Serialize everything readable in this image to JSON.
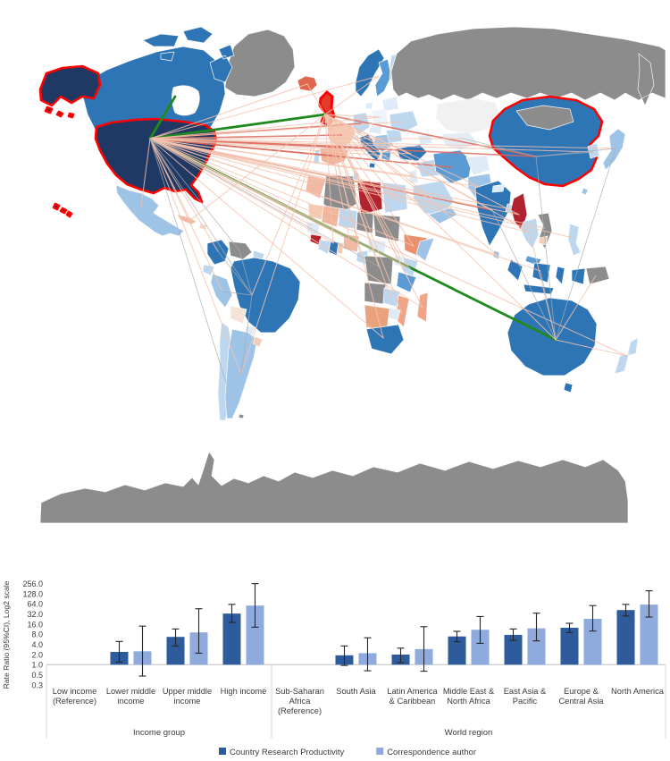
{
  "figure": {
    "background": "#FFFFFF"
  },
  "map": {
    "ocean_color": "#FFFFFF",
    "highlight_color": "#FF0000",
    "highlighted": [
      "usa",
      "alaska",
      "hawaii",
      "aleutian",
      "uk",
      " china",
      "china"
    ],
    "regions": {
      "greenland": "#8C8C8C",
      "iceland": "#E0674F",
      "canada": "#2E75B6",
      "canada_islands": "#2E75B6",
      "alaska": "#1F3864",
      "usa": "#1F3864",
      "hawaii": "#1F3864",
      "aleutian": "#1F3864",
      "mexico": "#9DC3E6",
      "cuba": "#F1B9A3",
      "hispaniola": "#F6D8C8",
      "colombia": "#2E75B6",
      "venezuela": "#8C8C8C",
      "guyanas": "#BDD7EE",
      "ecuador": "#BDD7EE",
      "peru": "#9DC3E6",
      "brazil": "#2E75B6",
      "bolivia": "#F6E3D7",
      "paraguay": "#DEEBF7",
      "chile": "#BDD7EE",
      "argentina": "#9DC3E6",
      "uruguay": "#F2CDB9",
      "falkland": "#8C8C8C",
      "norway": "#2E75B6",
      "sweden": "#5B9BD5",
      "finland": "#BDD7EE",
      "denmark": "#DEEBF7",
      "uk": "#E23B2E",
      "ireland": "#F8EFEA",
      "france": "#F5CBB4",
      "spain": "#EFB49A",
      "portugal": "#BDD7EE",
      "germany": "#BDD7EE",
      "benelux": "#F6F6F4",
      "italy": "#2E75B6",
      "sicily": "#2E75B6",
      "switzerland": "#DEEBF7",
      "poland": "#EDF3FA",
      "czech_austria": "#DEEBF7",
      "balkans": "#9DC3E6",
      "greece": "#5B9BD5",
      "romania": "#BDD7EE",
      "ukraine": "#BDD7EE",
      "belarus_baltics": "#DEEBF7",
      "russia": "#8C8C8C",
      "kazakhstan": "#F1F1F1",
      "central_asia_s": "#E3ECF4",
      "caucasus": "#DEEBF7",
      "turkey": "#2E75B6",
      "syria_iraq": "#BDD7EE",
      "israel_jordan": "#DEEBF7",
      "saudi": "#BDD7EE",
      "yemen_oman": "#9DC3E6",
      "iran": "#5B9BD5",
      "afghanistan": "#DEEBF7",
      "pakistan": "#9DC3E6",
      "india": "#2E75B6",
      "nepal": "#DEEBF7",
      "bangladesh": "#BDD7EE",
      "srilanka": "#9DC3E6",
      "myanmar": "#B1242F",
      "china": "#2E75B6",
      "mongolia": "#8C8C8C",
      "korea": "#BDD7EE",
      "japan": "#9DC3E6",
      "taiwan": "#9DC3E6",
      "thailand": "#BDD7EE",
      "vietnam_laos": "#8C8C8C",
      "cambodia": "#F2CDB9",
      "malaysia": "#5B9BD5",
      "sumatra": "#2E75B6",
      "borneo": "#2E75B6",
      "sulawesi": "#2E75B6",
      "java": "#2E75B6",
      "papua_indo": "#2E75B6",
      "png": "#8C8C8C",
      "philippines": "#BDD7EE",
      "australia": "#2E75B6",
      "tasmania": "#2E75B6",
      "nz_north": "#BDD7EE",
      "nz_south": "#BDD7EE",
      "morocco": "#F1B9A3",
      "algeria": "#8C8C8C",
      "tunisia": "#BDD7EE",
      "libya": "#B1242F",
      "egypt_af": "#BDD7EE",
      "mauritania": "#F5CBB4",
      "mali": "#EFB49A",
      "niger": "#BDD7EE",
      "chad": "#8C8C8C",
      "sudan": "#8C8C8C",
      "somalia": "#9DC3E6",
      "senegal": "#DEEBF7",
      "guinea": "#B1242F",
      "ivory": "#BDD7EE",
      "ghana": "#2E75B6",
      "togo_benin": "#F5CBB4",
      "nigeria": "#F1B9A3",
      "cameroon": "#BDD7EE",
      "centralafrica": "#DEEBF7",
      "drc": "#8C8C8C",
      "uganda": "#DEEBF7",
      "kenya": "#BDD7EE",
      "ethiopia": "#E8916C",
      "tanzania": "#5B9BD5",
      "angola": "#8C8C8C",
      "zambia": "#BDD7EE",
      "mozambique": "#EFA488",
      "zimbabwe": "#DEEBF7",
      "namibia_botswana": "#E8A27C",
      "south_africa": "#2E75B6",
      "madagascar": "#EFA488",
      "antarctica": "#8C8C8C",
      "hudson_bay": "#FFFFFF"
    },
    "line_styles": {
      "strong": {
        "color": "#1E8A1E",
        "width": 2.8,
        "opacity": 1
      },
      "medium": {
        "color": "#DC6A5C",
        "width": 1.6,
        "opacity": 0.85
      },
      "salmon": {
        "color": "#F5C3AF",
        "width": 1,
        "opacity": 0.85
      },
      "gray": {
        "color": "#A9ADB2",
        "width": 0.9,
        "opacity": 0.75
      }
    },
    "hubs": {
      "usa": [
        168,
        155
      ],
      "uk": [
        364,
        128
      ],
      "canada_pt": [
        196,
        108
      ],
      "china": [
        600,
        175
      ],
      "australia": [
        622,
        380
      ],
      "brazil": [
        282,
        330
      ],
      "japan": [
        689,
        166
      ],
      "germany": [
        404,
        138
      ],
      "france": [
        382,
        151
      ],
      "spain": [
        372,
        174
      ],
      "italy": [
        413,
        165
      ],
      "scand": [
        424,
        85
      ],
      "iceland": [
        344,
        94
      ],
      "poland": [
        425,
        131
      ],
      "ukraine": [
        451,
        136
      ],
      "turkey": [
        460,
        172
      ],
      "greece": [
        432,
        174
      ],
      "israel": [
        463,
        197
      ],
      "egypt": [
        441,
        219
      ],
      "saudi": [
        484,
        222
      ],
      "iran": [
        506,
        187
      ],
      "india": [
        551,
        235
      ],
      "pakistan": [
        537,
        209
      ],
      "bangladesh": [
        571,
        234
      ],
      "srilanka": [
        556,
        285
      ],
      "myanmar": [
        581,
        240
      ],
      "thailand": [
        593,
        260
      ],
      "vietnam": [
        610,
        255
      ],
      "indonesia": [
        605,
        303
      ],
      "philippines": [
        642,
        266
      ],
      "korea": [
        664,
        170
      ],
      "mexico": [
        158,
        231
      ],
      "caribbean": [
        213,
        246
      ],
      "colombia": [
        244,
        281
      ],
      "venezuela": [
        268,
        280
      ],
      "peru": [
        249,
        326
      ],
      "chile": [
        253,
        428
      ],
      "argentina": [
        270,
        418
      ],
      "nigeria": [
        391,
        268
      ],
      "ghana": [
        373,
        272
      ],
      "south_africa": [
        429,
        378
      ],
      "east_africa": [
        459,
        300
      ],
      "ethiopia": [
        463,
        275
      ],
      "kenya": [
        457,
        297
      ],
      "drc": [
        424,
        298
      ],
      "zambia": [
        437,
        332
      ],
      "mozambique": [
        450,
        350
      ],
      "cameroon": [
        403,
        281
      ],
      "uganda": [
        448,
        288
      ],
      "tanzania": [
        457,
        312
      ],
      "madagascar": [
        473,
        344
      ],
      "morocco": [
        352,
        206
      ],
      "senegal": [
        349,
        252
      ],
      "new_zealand": [
        702,
        398
      ],
      "png_pt": [
        667,
        308
      ],
      "central_asia": [
        519,
        155
      ]
    },
    "connections": [
      [
        "usa",
        "uk",
        "strong"
      ],
      [
        "usa",
        "australia",
        "strong"
      ],
      [
        "usa",
        "canada_pt",
        "strong"
      ],
      [
        "usa",
        "china",
        "medium"
      ],
      [
        "usa",
        "germany",
        "medium"
      ],
      [
        "usa",
        "france",
        "medium"
      ],
      [
        "usa",
        "italy",
        "medium"
      ],
      [
        "usa",
        "spain",
        "medium"
      ],
      [
        "usa",
        "india",
        "medium"
      ],
      [
        "usa",
        "iran",
        "medium"
      ],
      [
        "uk",
        "china",
        "medium"
      ],
      [
        "usa",
        "scand",
        "salmon"
      ],
      [
        "usa",
        "iceland",
        "salmon"
      ],
      [
        "usa",
        "poland",
        "salmon"
      ],
      [
        "usa",
        "ukraine",
        "salmon"
      ],
      [
        "usa",
        "turkey",
        "salmon"
      ],
      [
        "usa",
        "greece",
        "salmon"
      ],
      [
        "usa",
        "israel",
        "salmon"
      ],
      [
        "usa",
        "egypt",
        "salmon"
      ],
      [
        "usa",
        "saudi",
        "salmon"
      ],
      [
        "usa",
        "pakistan",
        "salmon"
      ],
      [
        "usa",
        "thailand",
        "salmon"
      ],
      [
        "usa",
        "vietnam",
        "salmon"
      ],
      [
        "usa",
        "indonesia",
        "salmon"
      ],
      [
        "usa",
        "philippines",
        "salmon"
      ],
      [
        "usa",
        "korea",
        "salmon"
      ],
      [
        "usa",
        "japan",
        "salmon"
      ],
      [
        "usa",
        "caribbean",
        "salmon"
      ],
      [
        "usa",
        "colombia",
        "salmon"
      ],
      [
        "usa",
        "peru",
        "salmon"
      ],
      [
        "usa",
        "argentina",
        "salmon"
      ],
      [
        "usa",
        "nigeria",
        "salmon"
      ],
      [
        "usa",
        "ghana",
        "salmon"
      ],
      [
        "usa",
        "south_africa",
        "salmon"
      ],
      [
        "usa",
        "east_africa",
        "salmon"
      ],
      [
        "usa",
        "ethiopia",
        "salmon"
      ],
      [
        "usa",
        "kenya",
        "salmon"
      ],
      [
        "usa",
        "madagascar",
        "salmon"
      ],
      [
        "usa",
        "morocco",
        "salmon"
      ],
      [
        "usa",
        "senegal",
        "salmon"
      ],
      [
        "usa",
        "new_zealand",
        "salmon"
      ],
      [
        "usa",
        "myanmar",
        "salmon"
      ],
      [
        "usa",
        "bangladesh",
        "salmon"
      ],
      [
        "usa",
        "srilanka",
        "salmon"
      ],
      [
        "usa",
        "central_asia",
        "salmon"
      ],
      [
        "usa",
        "mexico",
        "salmon"
      ],
      [
        "usa",
        "brazil",
        "gray"
      ],
      [
        "usa",
        "venezuela",
        "gray"
      ],
      [
        "usa",
        "chile",
        "gray"
      ],
      [
        "usa",
        "drc",
        "gray"
      ],
      [
        "uk",
        "iceland",
        "salmon"
      ],
      [
        "uk",
        "scand",
        "salmon"
      ],
      [
        "uk",
        "poland",
        "salmon"
      ],
      [
        "uk",
        "turkey",
        "salmon"
      ],
      [
        "uk",
        "egypt",
        "salmon"
      ],
      [
        "uk",
        "saudi",
        "salmon"
      ],
      [
        "uk",
        "israel",
        "salmon"
      ],
      [
        "uk",
        "nigeria",
        "salmon"
      ],
      [
        "uk",
        "ghana",
        "salmon"
      ],
      [
        "uk",
        "south_africa",
        "salmon"
      ],
      [
        "uk",
        "kenya",
        "salmon"
      ],
      [
        "uk",
        "ethiopia",
        "salmon"
      ],
      [
        "uk",
        "india",
        "salmon"
      ],
      [
        "uk",
        "pakistan",
        "salmon"
      ],
      [
        "uk",
        "thailand",
        "salmon"
      ],
      [
        "uk",
        "brazil",
        "salmon"
      ],
      [
        "uk",
        "argentina",
        "salmon"
      ],
      [
        "uk",
        "caribbean",
        "salmon"
      ],
      [
        "uk",
        "drc",
        "salmon"
      ],
      [
        "uk",
        "zambia",
        "salmon"
      ],
      [
        "uk",
        "mozambique",
        "salmon"
      ],
      [
        "uk",
        "cameroon",
        "salmon"
      ],
      [
        "uk",
        "uganda",
        "salmon"
      ],
      [
        "uk",
        "tanzania",
        "salmon"
      ],
      [
        "uk",
        "madagascar",
        "salmon"
      ],
      [
        "uk",
        "australia",
        "salmon"
      ],
      [
        "uk",
        "myanmar",
        "salmon"
      ],
      [
        "uk",
        "srilanka",
        "salmon"
      ],
      [
        "australia",
        "china",
        "gray"
      ],
      [
        "australia",
        "indonesia",
        "gray"
      ],
      [
        "australia",
        "japan",
        "gray"
      ],
      [
        "australia",
        "india",
        "gray"
      ],
      [
        "australia",
        "png_pt",
        "salmon"
      ],
      [
        "australia",
        "thailand",
        "salmon"
      ],
      [
        "australia",
        "new_zealand",
        "salmon"
      ],
      [
        "brazil",
        "colombia",
        "gray"
      ],
      [
        "brazil",
        "argentina",
        "gray"
      ],
      [
        "brazil",
        "venezuela",
        "gray"
      ],
      [
        "brazil",
        "peru",
        "gray"
      ],
      [
        "china",
        "japan",
        "gray"
      ],
      [
        "china",
        "korea",
        "gray"
      ],
      [
        "china",
        "central_asia",
        "gray"
      ]
    ]
  },
  "chart_data": {
    "type": "bar",
    "title": "",
    "xlabel": "",
    "ylabel": "Rate Ratio (95%CI), Log2 scale",
    "scale": "log2",
    "grid": false,
    "legend_position": "bottom",
    "y_ticks": [
      "256.0",
      "128.0",
      "64.0",
      "32.0",
      "16.0",
      "8.0",
      "4.0",
      "2.0",
      "1.0",
      "0.5",
      "0.3"
    ],
    "baseline": 1.0,
    "categories": [
      {
        "label": "Low income (Reference)",
        "lines": [
          "Low income",
          "(Reference)"
        ]
      },
      {
        "label": "Lower middle income",
        "lines": [
          "Lower middle",
          "income"
        ]
      },
      {
        "label": "Upper middle income",
        "lines": [
          "Upper middle",
          "income"
        ]
      },
      {
        "label": "High income",
        "lines": [
          "High income"
        ]
      },
      {
        "label": "Sub-Saharan Africa (Reference)",
        "lines": [
          "Sub-Saharan",
          "Africa",
          "(Reference)"
        ]
      },
      {
        "label": "South Asia",
        "lines": [
          "South Asia"
        ]
      },
      {
        "label": "Latin America & Caribbean",
        "lines": [
          "Latin America",
          "& Caribbean"
        ]
      },
      {
        "label": "Middle East & North Africa",
        "lines": [
          "Middle East &",
          "North Africa"
        ]
      },
      {
        "label": "East Asia & Pacific",
        "lines": [
          "East Asia &",
          "Pacific"
        ]
      },
      {
        "label": "Europe & Central Asia",
        "lines": [
          "Europe &",
          "Central Asia"
        ]
      },
      {
        "label": "North America",
        "lines": [
          "North America"
        ]
      }
    ],
    "groups": [
      {
        "label": "Income group",
        "span": [
          0,
          3
        ]
      },
      {
        "label": "World region",
        "span": [
          4,
          10
        ]
      }
    ],
    "series": [
      {
        "name": "Country Research Productivity",
        "color": "#2E5B9B",
        "values": [
          null,
          2.4,
          6.7,
          33,
          null,
          1.9,
          2.0,
          6.9,
          7.7,
          12.5,
          42
        ],
        "ci_low": [
          null,
          1.2,
          3.6,
          18,
          null,
          0.95,
          1.15,
          4.8,
          5.3,
          9,
          28
        ],
        "ci_high": [
          null,
          4.9,
          11.5,
          62,
          null,
          3.6,
          3.1,
          9.8,
          11.5,
          17,
          62
        ]
      },
      {
        "name": "Correspondence author",
        "color": "#8FAADC",
        "values": [
          null,
          2.5,
          9.1,
          57,
          null,
          2.2,
          2.9,
          10.9,
          12,
          23,
          61
        ],
        "ci_low": [
          null,
          0.46,
          2.2,
          13,
          null,
          0.66,
          0.64,
          4.3,
          5.1,
          10,
          26
        ],
        "ci_high": [
          null,
          14,
          46,
          256,
          null,
          6.3,
          13.5,
          27,
          34,
          57,
          157
        ]
      }
    ]
  }
}
